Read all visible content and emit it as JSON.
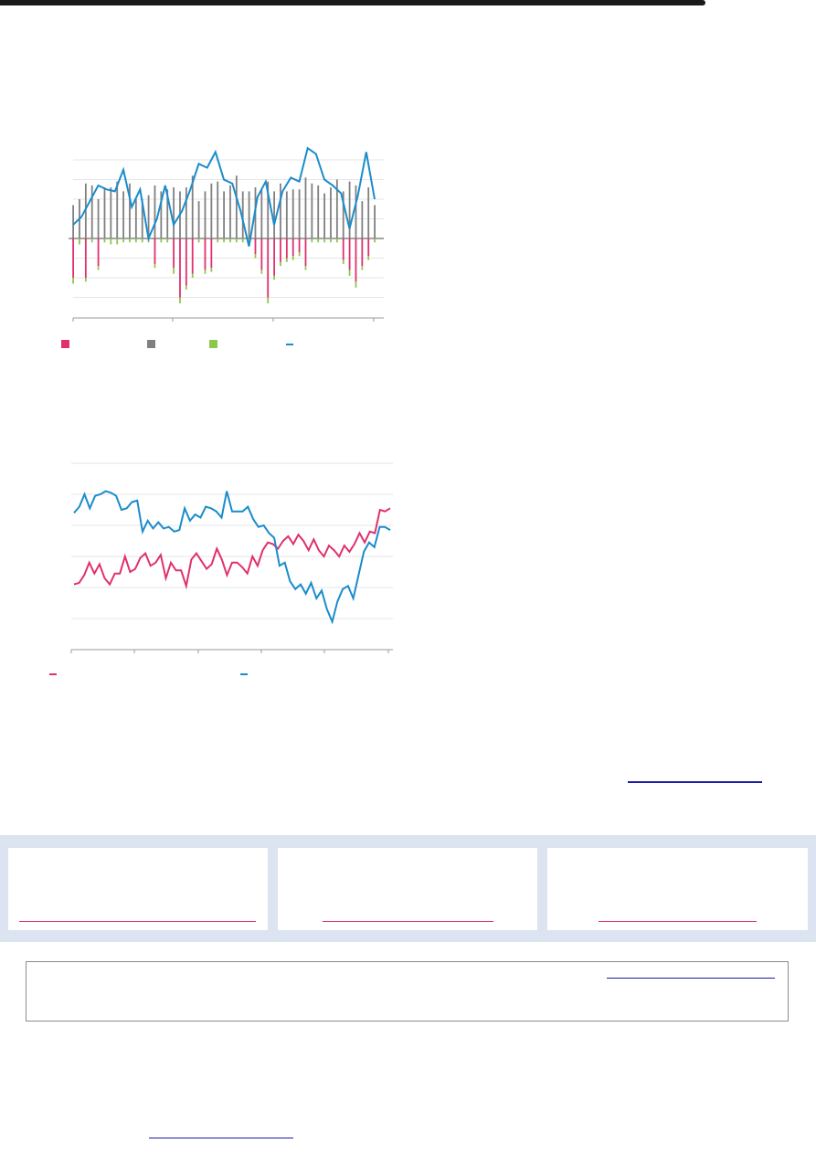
{
  "colors": {
    "pink": "#e0306e",
    "grey": "#808080",
    "green": "#8cc84b",
    "blue": "#1a8ccc",
    "link": "#1a1aa6",
    "band": "#dce3f1"
  },
  "chart_data": [
    {
      "type": "bar",
      "grid": true,
      "legend_placement": "bottom",
      "series": [
        {
          "color": "#e0306e",
          "marker": "square",
          "values": [
            -20,
            0,
            -20,
            0,
            -14,
            0,
            0,
            0,
            0,
            0,
            0,
            0,
            0,
            -13,
            0,
            0,
            -15,
            -30,
            -24,
            -18,
            0,
            -16,
            -15,
            0,
            0,
            0,
            0,
            0,
            0,
            -8,
            -16,
            -30,
            -19,
            -12,
            -10,
            -9,
            -7,
            -14,
            0,
            0,
            0,
            0,
            0,
            -11,
            -16,
            -22,
            -14,
            -9,
            0
          ]
        },
        {
          "color": "#808080",
          "marker": "square",
          "values": [
            17,
            20,
            28,
            27,
            20,
            26,
            26,
            29,
            24,
            28,
            20,
            20,
            22,
            27,
            24,
            25,
            26,
            24,
            26,
            32,
            19,
            24,
            28,
            29,
            24,
            27,
            32,
            24,
            24,
            26,
            25,
            29,
            24,
            28,
            24,
            25,
            25,
            31,
            28,
            27,
            23,
            26,
            30,
            24,
            29,
            27,
            19,
            26,
            17
          ]
        },
        {
          "color": "#8cc84b",
          "marker": "square",
          "values": [
            -3,
            -3,
            -2,
            -2,
            -2,
            -2,
            -3,
            -3,
            -2,
            -2,
            -2,
            -2,
            -2,
            -2,
            -2,
            -2,
            -3,
            -3,
            -2,
            -2,
            -2,
            -2,
            -2,
            -2,
            -2,
            -2,
            -2,
            -2,
            -2,
            -2,
            -2,
            -3,
            -2,
            -2,
            -2,
            -2,
            -2,
            -2,
            -2,
            -2,
            -2,
            -2,
            -2,
            -2,
            -3,
            -3,
            -2,
            -2,
            -2
          ]
        },
        {
          "color": "#1a8ccc",
          "marker": "dash",
          "values": [
            7,
            11,
            19,
            27,
            25,
            24,
            35,
            16,
            25,
            0,
            10,
            27,
            7,
            14,
            25,
            38,
            36,
            44,
            30,
            28,
            14,
            -4,
            21,
            29,
            7,
            24,
            31,
            29,
            46,
            43,
            30,
            27,
            23,
            5,
            22,
            44,
            20
          ]
        }
      ]
    },
    {
      "type": "line",
      "grid": true,
      "legend_placement": "bottom",
      "series": [
        {
          "color": "#e0306e",
          "marker": "dash",
          "values": [
            21,
            21.5,
            24,
            28,
            24.5,
            27.5,
            23,
            21,
            24.5,
            24.5,
            30,
            25,
            26,
            29.5,
            31,
            27,
            28,
            30.5,
            23,
            28,
            25.5,
            25.5,
            20.5,
            29,
            31,
            28.5,
            26,
            27.5,
            32.5,
            29,
            24,
            28,
            28,
            26.5,
            24.5,
            30,
            27,
            32,
            34.5,
            34,
            32.5,
            35,
            36.5,
            34,
            37,
            35,
            32,
            35.5,
            32,
            30,
            33.5,
            32,
            30,
            33.5,
            31.5,
            34,
            37.5,
            34.5,
            38,
            37.5,
            45,
            44.5,
            45.5
          ]
        },
        {
          "color": "#1a8ccc",
          "marker": "dash",
          "values": [
            44,
            46,
            50,
            45.5,
            49.5,
            50,
            51,
            50.5,
            49.5,
            45,
            45.5,
            47.5,
            48,
            38,
            41.5,
            39,
            41,
            39,
            39.5,
            38,
            38.5,
            45.5,
            41.5,
            43.5,
            42.5,
            46,
            45.5,
            44.5,
            42.5,
            51,
            44.5,
            44.5,
            44.5,
            46,
            42,
            39.5,
            40,
            37.5,
            36,
            27,
            28,
            22,
            19.5,
            21,
            18,
            21.5,
            16.5,
            19,
            13,
            9,
            15.5,
            19.5,
            20.5,
            16.5,
            24,
            31.5,
            34.5,
            33,
            39.5,
            39.5,
            38.5
          ]
        }
      ]
    }
  ]
}
